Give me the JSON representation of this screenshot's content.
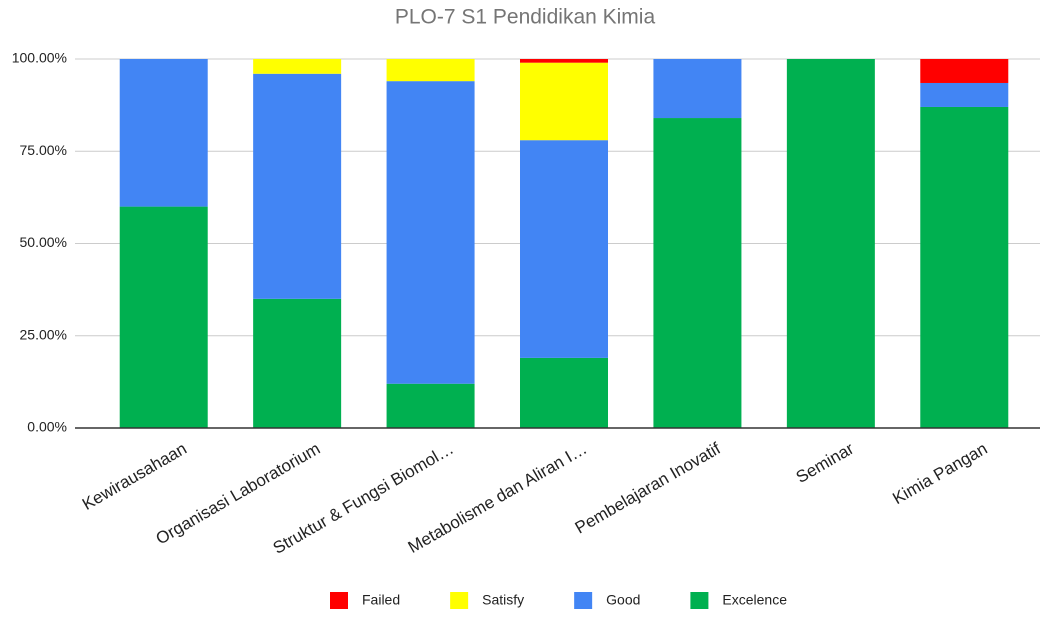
{
  "chart_data": {
    "type": "stacked_bar",
    "title": "PLO-7 S1 Pendidikan Kimia",
    "categories": [
      "Kewirausahaan",
      "Organisasi Laboratorium",
      "Struktur & Fungsi Biomol…",
      "Metabolisme dan Aliran I…",
      "Pembelajaran Inovatif",
      "Seminar",
      "Kimia Pangan"
    ],
    "series": [
      {
        "name": "Failed",
        "color": "#ff0000",
        "values": [
          0,
          0,
          0,
          1,
          0,
          0,
          6.5
        ]
      },
      {
        "name": "Satisfy",
        "color": "#ffff00",
        "values": [
          0,
          4,
          6,
          21,
          0,
          0,
          0
        ]
      },
      {
        "name": "Good",
        "color": "#4285f4",
        "values": [
          40,
          61,
          82,
          59,
          16,
          0,
          6.5
        ]
      },
      {
        "name": "Excelence",
        "color": "#00b050",
        "values": [
          60,
          35,
          12,
          19,
          84,
          100,
          87
        ]
      }
    ],
    "ylim": [
      0,
      100
    ],
    "yticks": [
      {
        "value": 0,
        "label": "0.00%"
      },
      {
        "value": 25,
        "label": "25.00%"
      },
      {
        "value": 50,
        "label": "50.00%"
      },
      {
        "value": 75,
        "label": "75.00%"
      },
      {
        "value": 100,
        "label": "100.00%"
      }
    ],
    "grid": true,
    "legend": "bottom"
  }
}
